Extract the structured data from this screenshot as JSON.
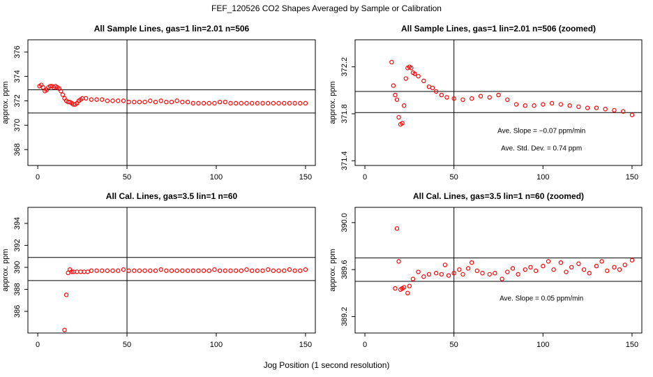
{
  "title": "FEF_120526  CO2 Shapes Averaged by Sample or Calibration",
  "xlabel": "Jog Position (1 second resolution)",
  "chart_data": [
    {
      "type": "scatter",
      "title": "All Sample Lines, gas=1 lin=2.01 n=506",
      "ylabel": "approx. ppm",
      "color": "#ff0000",
      "x": [
        1,
        2,
        3,
        4,
        5,
        6,
        7,
        8,
        9,
        10,
        11,
        12,
        13,
        14,
        15,
        16,
        17,
        18,
        19,
        20,
        21,
        22,
        23,
        24,
        25,
        27,
        30,
        33,
        36,
        39,
        42,
        45,
        48,
        51,
        54,
        57,
        60,
        63,
        66,
        69,
        72,
        75,
        78,
        81,
        84,
        87,
        90,
        93,
        96,
        99,
        102,
        105,
        108,
        111,
        114,
        117,
        120,
        123,
        126,
        129,
        132,
        135,
        138,
        141,
        144,
        147,
        150
      ],
      "values": [
        373.2,
        373.3,
        373.1,
        372.8,
        372.9,
        373.1,
        373.2,
        373.2,
        373.1,
        373.2,
        373.1,
        373.0,
        372.8,
        372.5,
        372.2,
        372.0,
        371.9,
        371.9,
        371.8,
        371.7,
        371.7,
        371.8,
        372.0,
        372.1,
        372.2,
        372.2,
        372.1,
        372.1,
        372.1,
        372.0,
        372.0,
        372.0,
        372.0,
        371.9,
        371.9,
        371.9,
        371.9,
        372.0,
        371.9,
        372.0,
        371.9,
        371.9,
        372.0,
        371.9,
        371.9,
        371.8,
        371.8,
        371.8,
        371.8,
        371.8,
        371.9,
        371.9,
        371.8,
        371.8,
        371.8,
        371.8,
        371.8,
        371.8,
        371.8,
        371.8,
        371.8,
        371.8,
        371.8,
        371.8,
        371.8,
        371.8,
        371.8
      ],
      "xlim": [
        -5.5,
        155.5
      ],
      "ylim": [
        366.7,
        377.0
      ],
      "xticks": [
        0,
        50,
        100,
        150
      ],
      "yticks": [
        368,
        370,
        372,
        374,
        376
      ],
      "vlines": [
        50
      ],
      "hlines": [
        372.9,
        371.0
      ]
    },
    {
      "type": "scatter",
      "title": "All Sample Lines, gas=1 lin=2.01 n=506 (zoomed)",
      "ylabel": "approx. ppm",
      "color": "#ff0000",
      "x": [
        15,
        16,
        17,
        18,
        19,
        20,
        21,
        22,
        23,
        24,
        25,
        26,
        27,
        28,
        30,
        33,
        36,
        38,
        40,
        43,
        46,
        50,
        55,
        60,
        65,
        70,
        75,
        80,
        85,
        90,
        95,
        100,
        105,
        110,
        115,
        120,
        125,
        130,
        135,
        140,
        145,
        150
      ],
      "values": [
        372.24,
        372.04,
        371.96,
        371.92,
        371.77,
        371.71,
        371.72,
        371.87,
        372.1,
        372.19,
        372.2,
        372.19,
        372.15,
        372.14,
        372.12,
        372.08,
        372.03,
        372.02,
        371.99,
        371.96,
        371.94,
        371.93,
        371.92,
        371.93,
        371.95,
        371.94,
        371.96,
        371.92,
        371.88,
        371.87,
        371.87,
        371.88,
        371.89,
        371.88,
        371.87,
        371.86,
        371.85,
        371.85,
        371.84,
        371.83,
        371.82,
        371.79
      ],
      "xlim": [
        -5.5,
        155.5
      ],
      "ylim": [
        371.36,
        372.43
      ],
      "xticks": [
        0,
        50,
        100,
        150
      ],
      "yticks": [
        371.4,
        371.8,
        372.2
      ],
      "vlines": [
        50
      ],
      "hlines": [
        371.99,
        371.81
      ],
      "annotations": [
        "Ave. Slope =  −0.07  ppm/min",
        "Ave. Std. Dev. =  0.74  ppm"
      ]
    },
    {
      "type": "scatter",
      "title": "All Cal. Lines, gas=3.5 lin=1 n=60",
      "ylabel": "approx. ppm",
      "color": "#ff0000",
      "x": [
        15,
        16,
        17,
        18,
        19,
        20,
        22,
        24,
        26,
        28,
        30,
        33,
        36,
        39,
        42,
        45,
        48,
        51,
        54,
        57,
        60,
        63,
        66,
        69,
        72,
        75,
        78,
        81,
        84,
        87,
        90,
        93,
        96,
        99,
        102,
        105,
        108,
        111,
        114,
        117,
        120,
        123,
        126,
        129,
        132,
        135,
        138,
        141,
        144,
        147,
        150
      ],
      "values": [
        384.3,
        387.5,
        389.5,
        389.8,
        389.6,
        389.6,
        389.6,
        389.6,
        389.6,
        389.6,
        389.7,
        389.7,
        389.7,
        389.7,
        389.7,
        389.7,
        389.8,
        389.7,
        389.7,
        389.7,
        389.7,
        389.7,
        389.7,
        389.8,
        389.7,
        389.7,
        389.7,
        389.7,
        389.7,
        389.7,
        389.7,
        389.7,
        389.7,
        389.8,
        389.7,
        389.7,
        389.7,
        389.7,
        389.7,
        389.8,
        389.7,
        389.7,
        389.7,
        389.8,
        389.7,
        389.7,
        389.7,
        389.8,
        389.7,
        389.7,
        389.8
      ],
      "xlim": [
        -5.5,
        155.5
      ],
      "ylim": [
        384.03,
        395.46
      ],
      "xticks": [
        0,
        50,
        100,
        150
      ],
      "yticks": [
        386,
        388,
        390,
        392,
        394
      ],
      "vlines": [
        50
      ],
      "hlines": [
        390.9,
        388.8
      ]
    },
    {
      "type": "scatter",
      "title": "All Cal. Lines, gas=3.5 lin=1 n=60 (zoomed)",
      "ylabel": "approx. ppm",
      "color": "#ff0000",
      "x": [
        17,
        18,
        19,
        20,
        21,
        22,
        24,
        25,
        27,
        30,
        33,
        36,
        40,
        43,
        45,
        47,
        50,
        53,
        55,
        58,
        60,
        63,
        66,
        70,
        73,
        77,
        80,
        83,
        86,
        90,
        93,
        96,
        100,
        103,
        106,
        110,
        113,
        116,
        120,
        123,
        126,
        130,
        133,
        136,
        140,
        143,
        146,
        150
      ],
      "values": [
        389.44,
        389.95,
        389.67,
        389.43,
        389.44,
        389.45,
        389.4,
        389.46,
        389.52,
        389.58,
        389.54,
        389.56,
        389.57,
        389.56,
        389.64,
        389.55,
        389.57,
        389.6,
        389.56,
        389.61,
        389.66,
        389.59,
        389.57,
        389.56,
        389.57,
        389.52,
        389.58,
        389.61,
        389.56,
        389.6,
        389.62,
        389.59,
        389.63,
        389.67,
        389.6,
        389.66,
        389.58,
        389.62,
        389.65,
        389.6,
        389.57,
        389.63,
        389.67,
        389.59,
        389.62,
        389.6,
        389.64,
        389.68
      ],
      "xlim": [
        -5.5,
        155.5
      ],
      "ylim": [
        389.06,
        390.13
      ],
      "xticks": [
        0,
        50,
        100,
        150
      ],
      "yticks": [
        389.2,
        389.6,
        {
          "value": 390,
          "label": "390.0"
        }
      ],
      "vlines": [
        50
      ],
      "hlines": [
        389.7,
        389.5
      ],
      "annotations": [
        "Ave. Slope =  0.05  ppm/min"
      ]
    }
  ]
}
